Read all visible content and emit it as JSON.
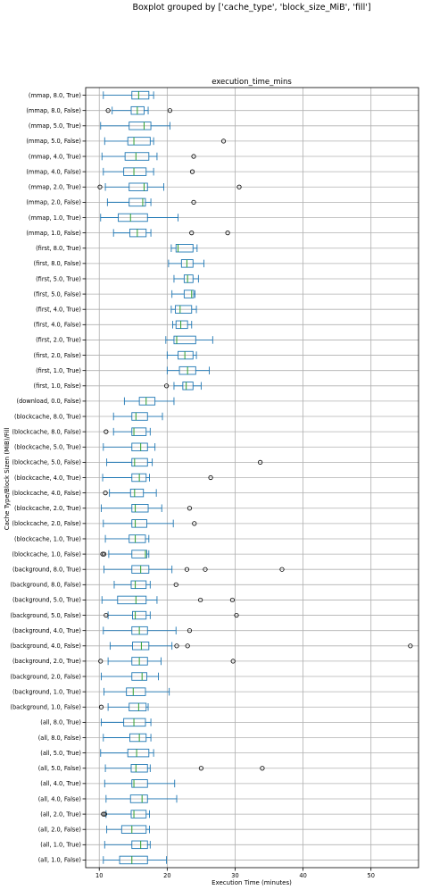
{
  "chart_data": {
    "type": "boxplot",
    "orientation": "horizontal",
    "suptitle": "Boxplot grouped by ['cache_type', 'block_size_MiB', 'fill']",
    "title": "execution_time_mins",
    "xlabel": "Execution Time (minutes)",
    "ylabel": "Cache Type/Block Sizen (MiB)/Fill",
    "xlim": [
      8,
      57
    ],
    "xticks": [
      10,
      20,
      30,
      40,
      50
    ],
    "xtick_labels": [
      "10",
      "20",
      "30",
      "40",
      "50"
    ],
    "grid": true,
    "box_color": "#1f77b4",
    "median_color": "#2ca02c",
    "categories": [
      "(all, 1.0, False)",
      "(all, 1.0, True)",
      "(all, 2.0, False)",
      "(all, 2.0, True)",
      "(all, 4.0, False)",
      "(all, 4.0, True)",
      "(all, 5.0, False)",
      "(all, 5.0, True)",
      "(all, 8.0, False)",
      "(all, 8.0, True)",
      "(background, 1.0, False)",
      "(background, 1.0, True)",
      "(background, 2.0, False)",
      "(background, 2.0, True)",
      "(background, 4.0, False)",
      "(background, 4.0, True)",
      "(background, 5.0, False)",
      "(background, 5.0, True)",
      "(background, 8.0, False)",
      "(background, 8.0, True)",
      "(blockcache, 1.0, False)",
      "(blockcache, 1.0, True)",
      "(blockcache, 2.0, False)",
      "(blockcache, 2.0, True)",
      "(blockcache, 4.0, False)",
      "(blockcache, 4.0, True)",
      "(blockcache, 5.0, False)",
      "(blockcache, 5.0, True)",
      "(blockcache, 8.0, False)",
      "(blockcache, 8.0, True)",
      "(download, 0.0, False)",
      "(first, 1.0, False)",
      "(first, 1.0, True)",
      "(first, 2.0, False)",
      "(first, 2.0, True)",
      "(first, 4.0, False)",
      "(first, 4.0, True)",
      "(first, 5.0, False)",
      "(first, 5.0, True)",
      "(first, 8.0, False)",
      "(first, 8.0, True)",
      "(mmap, 1.0, False)",
      "(mmap, 1.0, True)",
      "(mmap, 2.0, False)",
      "(mmap, 2.0, True)",
      "(mmap, 4.0, False)",
      "(mmap, 4.0, True)",
      "(mmap, 5.0, False)",
      "(mmap, 5.0, True)",
      "(mmap, 8.0, False)",
      "(mmap, 8.0, True)"
    ],
    "boxes": [
      {
        "whislo": 10.6,
        "q1": 13.0,
        "med": 14.8,
        "q3": 17.1,
        "whishi": 19.9,
        "fliers": []
      },
      {
        "whislo": 10.8,
        "q1": 14.8,
        "med": 16.1,
        "q3": 17.1,
        "whishi": 17.5,
        "fliers": []
      },
      {
        "whislo": 11.1,
        "q1": 13.3,
        "med": 14.8,
        "q3": 16.9,
        "whishi": 17.4,
        "fliers": []
      },
      {
        "whislo": 11.0,
        "q1": 14.7,
        "med": 15.1,
        "q3": 16.9,
        "whishi": 17.4,
        "fliers": [
          10.6,
          10.8
        ]
      },
      {
        "whislo": 11.0,
        "q1": 14.6,
        "med": 16.3,
        "q3": 17.1,
        "whishi": 21.4,
        "fliers": []
      },
      {
        "whislo": 10.8,
        "q1": 14.8,
        "med": 15.1,
        "q3": 17.1,
        "whishi": 21.1,
        "fliers": []
      },
      {
        "whislo": 10.9,
        "q1": 14.7,
        "med": 15.4,
        "q3": 17.1,
        "whishi": 17.5,
        "fliers": [
          25.0,
          34.0
        ]
      },
      {
        "whislo": 10.2,
        "q1": 14.2,
        "med": 15.5,
        "q3": 17.3,
        "whishi": 18.0,
        "fliers": []
      },
      {
        "whislo": 10.6,
        "q1": 14.5,
        "med": 15.9,
        "q3": 16.9,
        "whishi": 17.6,
        "fliers": []
      },
      {
        "whislo": 10.3,
        "q1": 13.6,
        "med": 15.1,
        "q3": 16.8,
        "whishi": 17.6,
        "fliers": []
      },
      {
        "whislo": 11.3,
        "q1": 14.4,
        "med": 15.8,
        "q3": 16.9,
        "whishi": 17.2,
        "fliers": [
          10.3
        ]
      },
      {
        "whislo": 10.7,
        "q1": 14.0,
        "med": 15.0,
        "q3": 16.8,
        "whishi": 20.3,
        "fliers": []
      },
      {
        "whislo": 10.3,
        "q1": 14.8,
        "med": 16.3,
        "q3": 17.0,
        "whishi": 18.7,
        "fliers": []
      },
      {
        "whislo": 11.3,
        "q1": 14.8,
        "med": 15.9,
        "q3": 17.1,
        "whishi": 19.1,
        "fliers": [
          10.2,
          29.7
        ]
      },
      {
        "whislo": 11.6,
        "q1": 14.9,
        "med": 16.2,
        "q3": 17.3,
        "whishi": 20.7,
        "fliers": [
          21.4,
          23.0,
          55.8
        ]
      },
      {
        "whislo": 10.6,
        "q1": 14.8,
        "med": 15.9,
        "q3": 17.1,
        "whishi": 21.3,
        "fliers": [
          23.3
        ]
      },
      {
        "whislo": 11.3,
        "q1": 14.9,
        "med": 15.3,
        "q3": 16.9,
        "whishi": 17.5,
        "fliers": [
          11.0,
          30.2
        ]
      },
      {
        "whislo": 10.4,
        "q1": 12.7,
        "med": 15.4,
        "q3": 16.9,
        "whishi": 18.5,
        "fliers": [
          24.9,
          29.6
        ]
      },
      {
        "whislo": 12.2,
        "q1": 14.7,
        "med": 15.3,
        "q3": 16.9,
        "whishi": 17.5,
        "fliers": [
          21.3
        ]
      },
      {
        "whislo": 10.7,
        "q1": 14.8,
        "med": 16.1,
        "q3": 17.3,
        "whishi": 20.7,
        "fliers": [
          22.9,
          25.6,
          36.9
        ]
      },
      {
        "whislo": 11.4,
        "q1": 14.8,
        "med": 16.8,
        "q3": 17.0,
        "whishi": 17.3,
        "fliers": [
          10.5,
          10.7
        ]
      },
      {
        "whislo": 10.9,
        "q1": 14.4,
        "med": 15.3,
        "q3": 16.8,
        "whishi": 17.3,
        "fliers": []
      },
      {
        "whislo": 10.6,
        "q1": 14.8,
        "med": 15.3,
        "q3": 17.0,
        "whishi": 20.9,
        "fliers": [
          24.0
        ]
      },
      {
        "whislo": 10.3,
        "q1": 14.8,
        "med": 15.3,
        "q3": 17.2,
        "whishi": 19.2,
        "fliers": [
          23.3
        ]
      },
      {
        "whislo": 11.5,
        "q1": 14.6,
        "med": 15.2,
        "q3": 16.5,
        "whishi": 18.4,
        "fliers": [
          10.9
        ]
      },
      {
        "whislo": 10.5,
        "q1": 14.8,
        "med": 15.9,
        "q3": 16.9,
        "whishi": 17.4,
        "fliers": [
          26.4
        ]
      },
      {
        "whislo": 11.1,
        "q1": 14.8,
        "med": 15.2,
        "q3": 17.1,
        "whishi": 17.8,
        "fliers": [
          33.7
        ]
      },
      {
        "whislo": 10.6,
        "q1": 14.8,
        "med": 16.1,
        "q3": 17.1,
        "whishi": 18.2,
        "fliers": []
      },
      {
        "whislo": 12.1,
        "q1": 14.8,
        "med": 15.1,
        "q3": 16.9,
        "whishi": 17.5,
        "fliers": [
          11.0
        ]
      },
      {
        "whislo": 12.1,
        "q1": 14.8,
        "med": 15.4,
        "q3": 17.1,
        "whishi": 19.3,
        "fliers": []
      },
      {
        "whislo": 13.7,
        "q1": 15.9,
        "med": 16.9,
        "q3": 18.2,
        "whishi": 21.0,
        "fliers": []
      },
      {
        "whislo": 21.0,
        "q1": 22.3,
        "med": 22.8,
        "q3": 23.8,
        "whishi": 25.0,
        "fliers": [
          19.9
        ]
      },
      {
        "whislo": 20.0,
        "q1": 21.8,
        "med": 23.0,
        "q3": 24.2,
        "whishi": 26.2,
        "fliers": []
      },
      {
        "whislo": 20.0,
        "q1": 21.6,
        "med": 22.6,
        "q3": 23.8,
        "whishi": 24.3,
        "fliers": []
      },
      {
        "whislo": 19.8,
        "q1": 21.0,
        "med": 21.4,
        "q3": 24.2,
        "whishi": 26.7,
        "fliers": []
      },
      {
        "whislo": 20.8,
        "q1": 21.3,
        "med": 22.0,
        "q3": 23.0,
        "whishi": 23.6,
        "fliers": []
      },
      {
        "whislo": 20.6,
        "q1": 21.2,
        "med": 21.9,
        "q3": 23.6,
        "whishi": 24.3,
        "fliers": []
      },
      {
        "whislo": 20.7,
        "q1": 22.5,
        "med": 23.6,
        "q3": 23.9,
        "whishi": 24.1,
        "fliers": []
      },
      {
        "whislo": 21.0,
        "q1": 22.5,
        "med": 23.0,
        "q3": 23.8,
        "whishi": 24.6,
        "fliers": []
      },
      {
        "whislo": 20.2,
        "q1": 22.1,
        "med": 22.9,
        "q3": 23.8,
        "whishi": 25.4,
        "fliers": []
      },
      {
        "whislo": 20.6,
        "q1": 21.3,
        "med": 21.6,
        "q3": 23.8,
        "whishi": 24.4,
        "fliers": []
      },
      {
        "whislo": 12.1,
        "q1": 14.5,
        "med": 15.6,
        "q3": 16.9,
        "whishi": 17.6,
        "fliers": [
          23.6,
          28.9
        ]
      },
      {
        "whislo": 10.2,
        "q1": 12.8,
        "med": 14.6,
        "q3": 17.1,
        "whishi": 21.6,
        "fliers": []
      },
      {
        "whislo": 11.2,
        "q1": 14.4,
        "med": 16.4,
        "q3": 16.8,
        "whishi": 17.6,
        "fliers": [
          23.9
        ]
      },
      {
        "whislo": 10.9,
        "q1": 14.4,
        "med": 16.6,
        "q3": 17.1,
        "whishi": 19.5,
        "fliers": [
          10.1,
          30.6
        ]
      },
      {
        "whislo": 10.6,
        "q1": 13.6,
        "med": 15.1,
        "q3": 16.9,
        "whishi": 18.0,
        "fliers": [
          23.7
        ]
      },
      {
        "whislo": 10.4,
        "q1": 13.8,
        "med": 15.4,
        "q3": 17.3,
        "whishi": 18.5,
        "fliers": [
          23.9
        ]
      },
      {
        "whislo": 10.8,
        "q1": 14.2,
        "med": 15.1,
        "q3": 17.5,
        "whishi": 18.0,
        "fliers": [
          28.3
        ]
      },
      {
        "whislo": 10.2,
        "q1": 14.4,
        "med": 16.6,
        "q3": 17.6,
        "whishi": 20.4,
        "fliers": []
      },
      {
        "whislo": 11.9,
        "q1": 14.7,
        "med": 15.6,
        "q3": 16.6,
        "whishi": 17.2,
        "fliers": [
          11.3,
          20.4
        ]
      },
      {
        "whislo": 10.6,
        "q1": 14.8,
        "med": 15.8,
        "q3": 17.3,
        "whishi": 18.0,
        "fliers": []
      }
    ]
  }
}
